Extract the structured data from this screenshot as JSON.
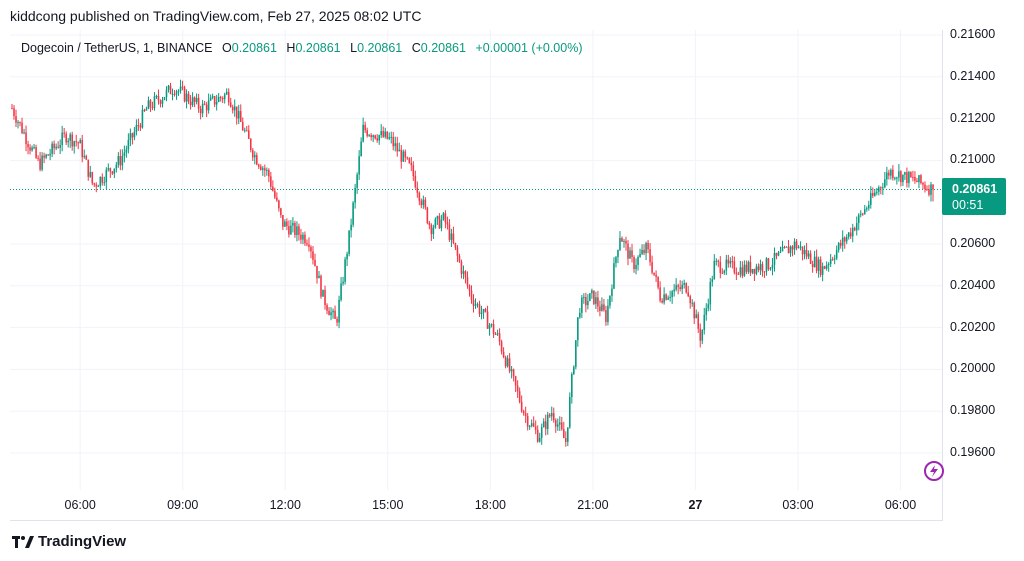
{
  "header": {
    "published": "kiddcong published on TradingView.com, Feb 27, 2025 08:02 UTC"
  },
  "legend": {
    "symbol": "Dogecoin / TetherUS, 1, BINANCE",
    "o_label": "O",
    "o_value": "0.20861",
    "h_label": "H",
    "h_value": "0.20861",
    "l_label": "L",
    "l_value": "0.20861",
    "c_label": "C",
    "c_value": "0.20861",
    "change": "+0.00001 (+0.00%)"
  },
  "price_tag": {
    "price": "0.20861",
    "countdown": "00:51"
  },
  "footer": {
    "brand": "TradingView"
  },
  "colors": {
    "up": "#089981",
    "down": "#f23645",
    "grid": "#f0f3fa",
    "accent": "#9c27b0"
  },
  "chart_data": {
    "type": "candlestick",
    "y_ticks": [
      "0.21600",
      "0.21400",
      "0.21200",
      "0.21000",
      "0.20600",
      "0.20400",
      "0.20200",
      "0.20000",
      "0.19800",
      "0.19600"
    ],
    "x_ticks": [
      "06:00",
      "09:00",
      "12:00",
      "15:00",
      "18:00",
      "21:00",
      "27",
      "03:00",
      "06:00"
    ],
    "ylim": [
      0.1945,
      0.2168
    ],
    "last_price": 0.20861,
    "grid": true,
    "anchors": [
      [
        0.0,
        0.2125
      ],
      [
        1.0,
        0.2098
      ],
      [
        2.0,
        0.2112
      ],
      [
        2.5,
        0.2108
      ],
      [
        3.0,
        0.2088
      ],
      [
        4.0,
        0.21
      ],
      [
        5.0,
        0.2125
      ],
      [
        6.0,
        0.2135
      ],
      [
        7.0,
        0.2125
      ],
      [
        8.0,
        0.2132
      ],
      [
        8.5,
        0.2117
      ],
      [
        9.0,
        0.2102
      ],
      [
        9.5,
        0.2093
      ],
      [
        10.0,
        0.207
      ],
      [
        11.0,
        0.2062
      ],
      [
        11.5,
        0.2035
      ],
      [
        12.0,
        0.2022
      ],
      [
        12.5,
        0.2065
      ],
      [
        13.0,
        0.2115
      ],
      [
        14.0,
        0.211
      ],
      [
        14.8,
        0.2095
      ],
      [
        15.5,
        0.2068
      ],
      [
        16.0,
        0.2072
      ],
      [
        17.0,
        0.2035
      ],
      [
        18.0,
        0.2015
      ],
      [
        19.0,
        0.1978
      ],
      [
        19.5,
        0.1968
      ],
      [
        20.0,
        0.198
      ],
      [
        20.5,
        0.1965
      ],
      [
        21.0,
        0.203
      ],
      [
        21.5,
        0.2035
      ],
      [
        22.0,
        0.2025
      ],
      [
        22.5,
        0.2065
      ],
      [
        23.0,
        0.205
      ],
      [
        23.5,
        0.2058
      ],
      [
        24.0,
        0.2035
      ],
      [
        25.0,
        0.204
      ],
      [
        25.5,
        0.2015
      ],
      [
        26.0,
        0.205
      ],
      [
        27.0,
        0.2048
      ],
      [
        28.0,
        0.205
      ],
      [
        29.0,
        0.206
      ],
      [
        30.0,
        0.2048
      ],
      [
        31.0,
        0.2065
      ],
      [
        32.0,
        0.2085
      ],
      [
        32.5,
        0.2095
      ],
      [
        33.5,
        0.209
      ],
      [
        34.1,
        0.2086
      ]
    ]
  }
}
